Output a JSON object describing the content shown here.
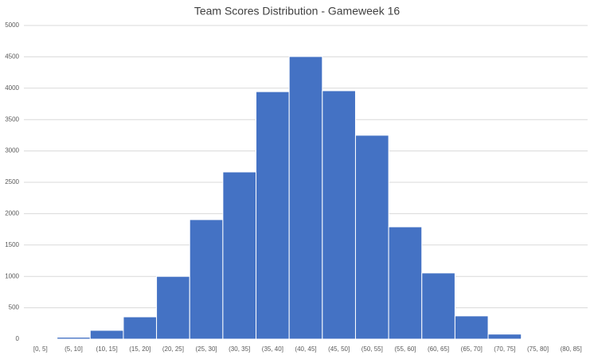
{
  "chart_data": {
    "type": "bar",
    "title": "Team Scores Distribution - Gameweek 16",
    "categories": [
      "[0, 5]",
      "(5, 10]",
      "(10, 15]",
      "(15, 20]",
      "(20, 25]",
      "(25, 30]",
      "(30, 35]",
      "(35, 40]",
      "(40, 45]",
      "(45, 50]",
      "(50, 55]",
      "(55, 60]",
      "(60, 65]",
      "(65, 70]",
      "(70, 75]",
      "(75, 80]",
      "(80, 85]"
    ],
    "values": [
      5,
      30,
      140,
      355,
      1000,
      1905,
      2665,
      3945,
      4505,
      3960,
      3250,
      1790,
      1055,
      370,
      80,
      8,
      1
    ],
    "color": "#4472c4",
    "ylim": [
      0,
      5000
    ],
    "yticks": [
      0,
      500,
      1000,
      1500,
      2000,
      2500,
      3000,
      3500,
      4000,
      4500,
      5000
    ],
    "grid": true
  }
}
